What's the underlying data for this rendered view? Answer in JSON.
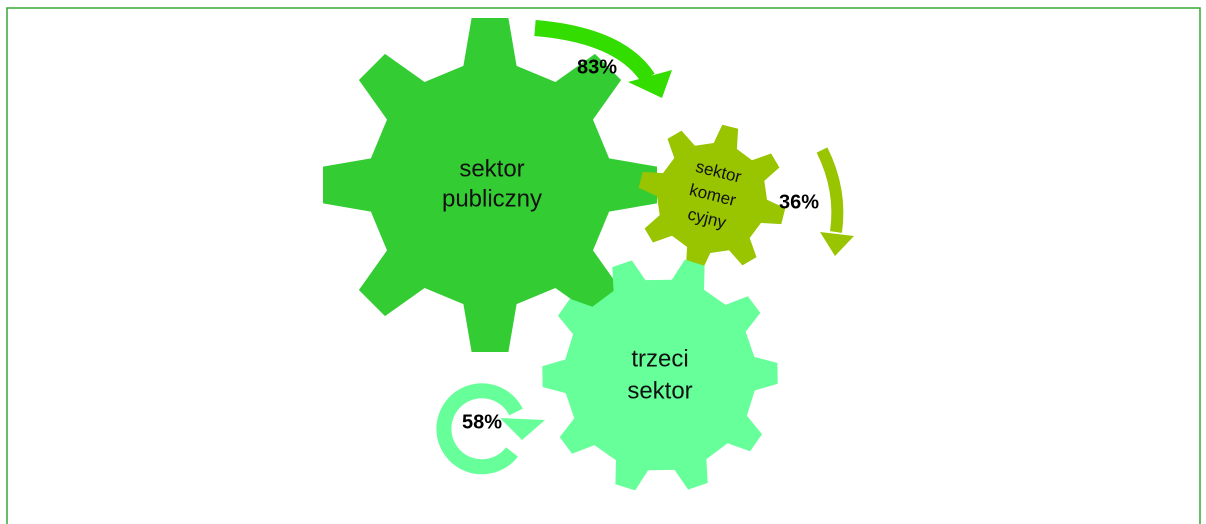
{
  "nodes": [
    {
      "lines": [
        "sektor",
        "publiczny"
      ]
    },
    {
      "lines": [
        "sektor",
        "komer",
        "cyjny"
      ]
    },
    {
      "lines": [
        "trzeci",
        "sektor"
      ]
    }
  ],
  "arrows": [
    {
      "label": "83%"
    },
    {
      "label": "36%"
    },
    {
      "label": "58%"
    }
  ]
}
